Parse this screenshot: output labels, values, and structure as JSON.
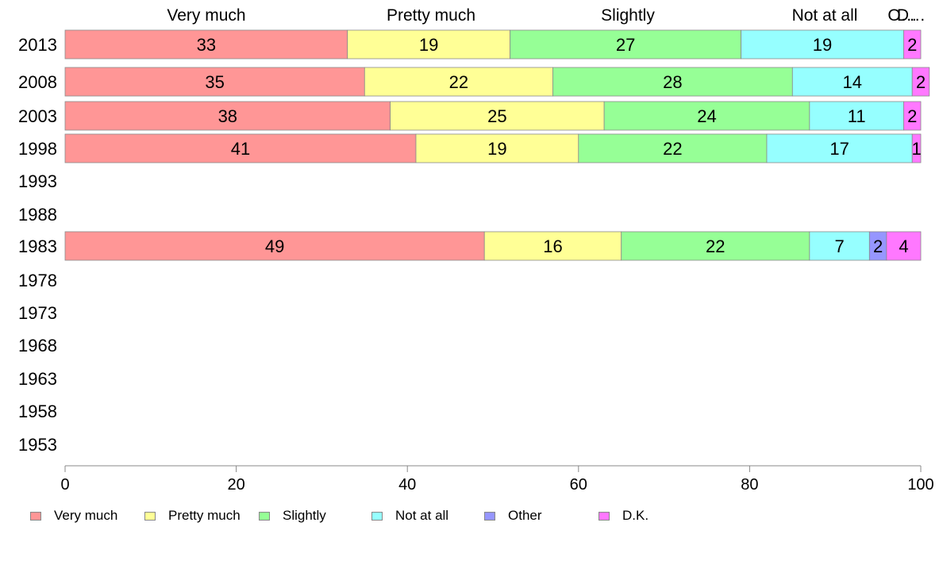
{
  "chart_data": {
    "type": "bar",
    "orientation": "horizontal",
    "stacked": true,
    "title": "",
    "xlabel": "",
    "ylabel": "",
    "xlim": [
      0,
      100
    ],
    "xticks": [
      0,
      20,
      40,
      60,
      80,
      100
    ],
    "grid": false,
    "legend_position": "bottom",
    "categories": [
      "2013",
      "2008",
      "2003",
      "1998",
      "1993",
      "1988",
      "1983",
      "1978",
      "1973",
      "1968",
      "1963",
      "1958",
      "1953"
    ],
    "top_labels": [
      "Very much",
      "Pretty much",
      "Slightly",
      "Not at all",
      "O…",
      "D…"
    ],
    "series": [
      {
        "name": "Very much",
        "color": "#FF9696",
        "values": [
          33,
          35,
          38,
          41,
          null,
          null,
          49,
          null,
          null,
          null,
          null,
          null,
          null
        ]
      },
      {
        "name": "Pretty much",
        "color": "#FFFF96",
        "values": [
          19,
          22,
          25,
          19,
          null,
          null,
          16,
          null,
          null,
          null,
          null,
          null,
          null
        ]
      },
      {
        "name": "Slightly",
        "color": "#96FF96",
        "values": [
          27,
          28,
          24,
          22,
          null,
          null,
          22,
          null,
          null,
          null,
          null,
          null,
          null
        ]
      },
      {
        "name": "Not at all",
        "color": "#96FFFF",
        "values": [
          19,
          14,
          11,
          17,
          null,
          null,
          7,
          null,
          null,
          null,
          null,
          null,
          null
        ]
      },
      {
        "name": "Other",
        "color": "#9696FF",
        "values": [
          0,
          0,
          0,
          0,
          null,
          null,
          2,
          null,
          null,
          null,
          null,
          null,
          null
        ]
      },
      {
        "name": "D.K.",
        "color": "#FF78FF",
        "values": [
          2,
          2,
          2,
          1,
          null,
          null,
          4,
          null,
          null,
          null,
          null,
          null,
          null
        ]
      }
    ]
  }
}
